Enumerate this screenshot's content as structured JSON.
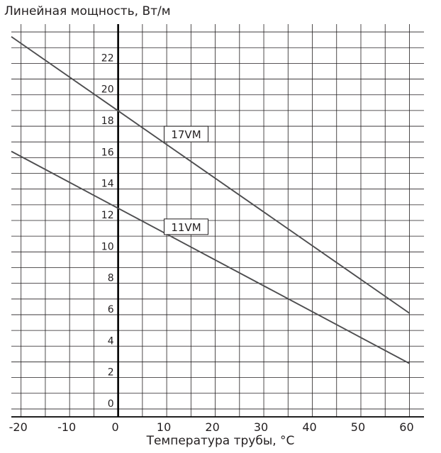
{
  "chart_data": {
    "type": "line",
    "xlabel": "Температура трубы, °C",
    "ylabel": "Линейная мощность, Вт/м",
    "xlim": [
      -22,
      63
    ],
    "ylim": [
      -0.5,
      24.5
    ],
    "x_ticks": [
      "-20",
      "-10",
      "0",
      "10",
      "20",
      "30",
      "40",
      "50",
      "60"
    ],
    "y_ticks": [
      "0",
      "2",
      "4",
      "6",
      "8",
      "10",
      "12",
      "14",
      "16",
      "18",
      "20",
      "22"
    ],
    "grid": true,
    "series": [
      {
        "name": "17VM",
        "x": [
          -22,
          60
        ],
        "y": [
          23.7,
          6.1
        ],
        "color": "#4d4d4f"
      },
      {
        "name": "11VM",
        "x": [
          -22,
          60
        ],
        "y": [
          16.4,
          2.9
        ],
        "color": "#4d4d4f"
      }
    ],
    "line_labels": [
      {
        "series": "17VM",
        "x": 14,
        "y": 17.5
      },
      {
        "series": "11VM",
        "x": 14,
        "y": 11.6
      }
    ]
  }
}
